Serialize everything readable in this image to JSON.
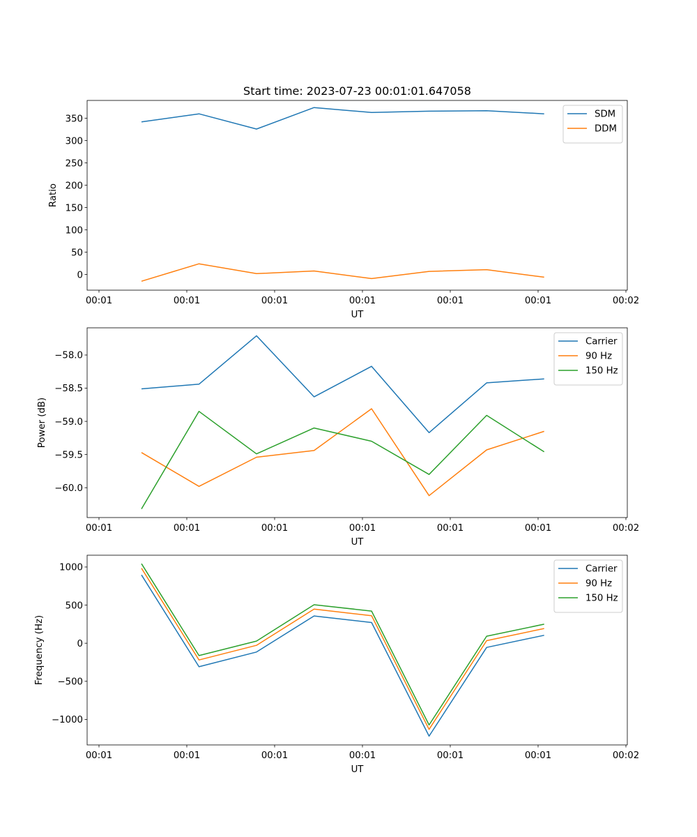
{
  "figure": {
    "title": "Start time: 2023-07-23 00:01:01.647058"
  },
  "chart_data": [
    {
      "type": "line",
      "title": "Start time: 2023-07-23 00:01:01.647058",
      "xlabel": "UT",
      "ylabel": "Ratio",
      "x_tick_labels": [
        "00:01",
        "00:01",
        "00:01",
        "00:01",
        "00:01",
        "00:01",
        "00:02"
      ],
      "x": [
        0,
        1,
        2,
        3,
        4,
        5,
        6,
        7
      ],
      "ylim": [
        -35,
        390
      ],
      "y_ticks": [
        0,
        50,
        100,
        150,
        200,
        250,
        300,
        350
      ],
      "y_tick_labels": [
        "0",
        "50",
        "100",
        "150",
        "200",
        "250",
        "300",
        "350"
      ],
      "grid": false,
      "legend_position": "top-right",
      "series": [
        {
          "name": "SDM",
          "color": "#1f77b4",
          "values": [
            342,
            360,
            326,
            374,
            363,
            366,
            367,
            360
          ]
        },
        {
          "name": "DDM",
          "color": "#ff7f0e",
          "values": [
            -15,
            24,
            2,
            8,
            -9,
            7,
            11,
            -6
          ]
        }
      ]
    },
    {
      "type": "line",
      "title": "",
      "xlabel": "UT",
      "ylabel": "Power (dB)",
      "x_tick_labels": [
        "00:01",
        "00:01",
        "00:01",
        "00:01",
        "00:01",
        "00:01",
        "00:02"
      ],
      "x": [
        0,
        1,
        2,
        3,
        4,
        5,
        6,
        7
      ],
      "ylim": [
        -60.45,
        -57.59
      ],
      "y_ticks": [
        -60.0,
        -59.5,
        -59.0,
        -58.5,
        -58.0
      ],
      "y_tick_labels": [
        "−60.0",
        "−59.5",
        "−59.0",
        "−58.5",
        "−58.0"
      ],
      "grid": false,
      "legend_position": "top-right",
      "series": [
        {
          "name": "Carrier",
          "color": "#1f77b4",
          "values": [
            -58.51,
            -58.44,
            -57.71,
            -58.63,
            -58.17,
            -59.17,
            -58.42,
            -58.36
          ]
        },
        {
          "name": "90 Hz",
          "color": "#ff7f0e",
          "values": [
            -59.47,
            -59.98,
            -59.54,
            -59.44,
            -58.81,
            -60.12,
            -59.43,
            -59.15
          ]
        },
        {
          "name": "150 Hz",
          "color": "#2ca02c",
          "values": [
            -60.32,
            -58.85,
            -59.49,
            -59.1,
            -59.3,
            -59.8,
            -58.91,
            -59.46
          ]
        }
      ]
    },
    {
      "type": "line",
      "title": "",
      "xlabel": "UT",
      "ylabel": "Frequency (Hz)",
      "x_tick_labels": [
        "00:01",
        "00:01",
        "00:01",
        "00:01",
        "00:01",
        "00:01",
        "00:02"
      ],
      "x": [
        0,
        1,
        2,
        3,
        4,
        5,
        6,
        7
      ],
      "ylim": [
        -1335,
        1155
      ],
      "y_ticks": [
        -1000,
        -500,
        0,
        500,
        1000
      ],
      "y_tick_labels": [
        "−1000",
        "−500",
        "0",
        "500",
        "1000"
      ],
      "grid": false,
      "legend_position": "top-right",
      "series": [
        {
          "name": "Carrier",
          "color": "#1f77b4",
          "values": [
            896,
            -309,
            -116,
            358,
            272,
            -1220,
            -55,
            104
          ]
        },
        {
          "name": "90 Hz",
          "color": "#ff7f0e",
          "values": [
            984,
            -220,
            -28,
            447,
            361,
            -1131,
            34,
            193
          ]
        },
        {
          "name": "150 Hz",
          "color": "#2ca02c",
          "values": [
            1043,
            -162,
            28,
            505,
            422,
            -1073,
            92,
            250
          ]
        }
      ]
    }
  ]
}
